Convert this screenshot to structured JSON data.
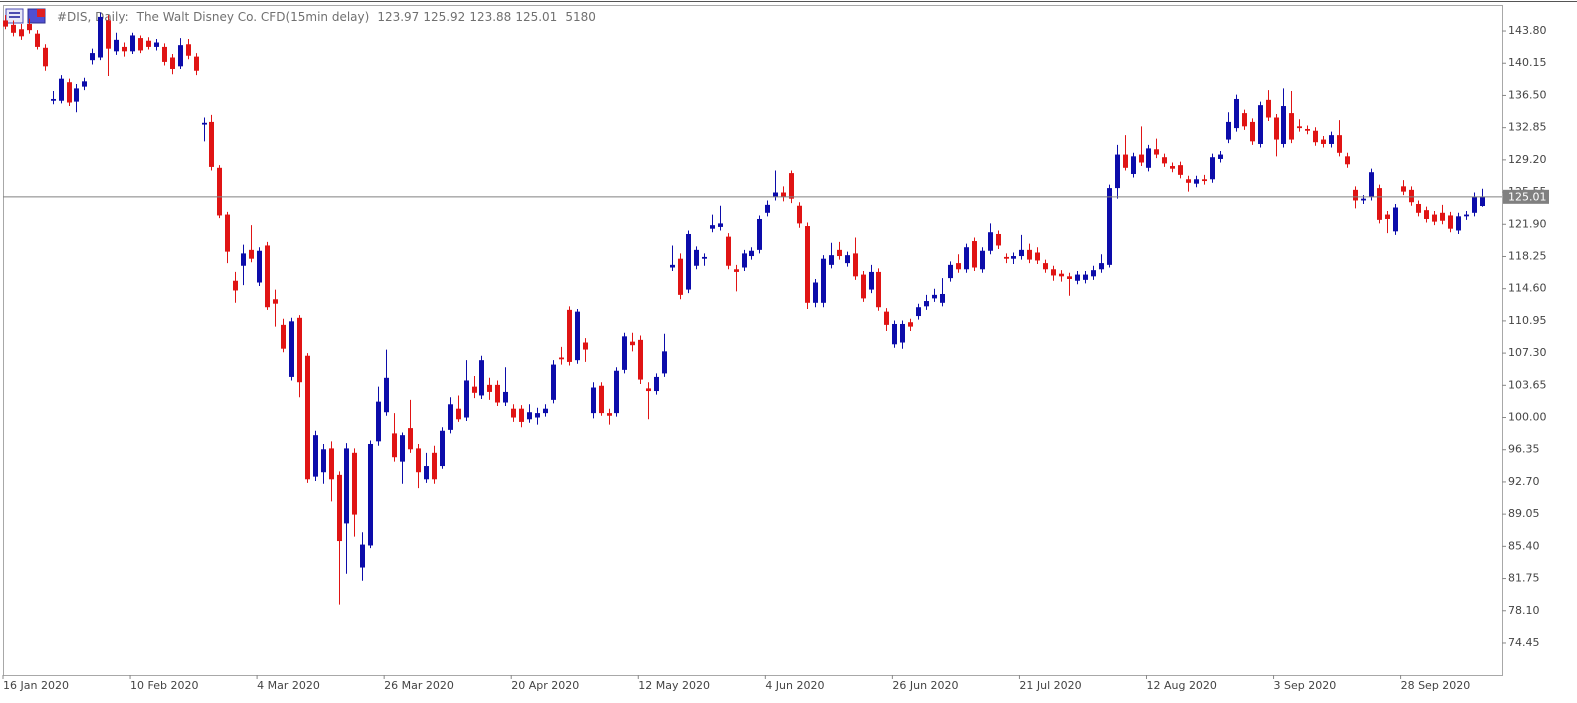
{
  "chart_data": {
    "type": "candlestick",
    "title": "#DIS, Daily:",
    "subtitle": "The Walt Disney Co. CFD(15min delay)",
    "volume": 5180,
    "up_color": "#0c0caa",
    "down_color": "#e01414",
    "categories": [
      "16 Jan 2020",
      null,
      null,
      null,
      null,
      null,
      null,
      null,
      null,
      null,
      null,
      null,
      null,
      null,
      null,
      null,
      "10 Feb 2020",
      null,
      null,
      null,
      null,
      null,
      null,
      null,
      null,
      null,
      null,
      null,
      null,
      null,
      null,
      null,
      "4 Mar 2020",
      null,
      null,
      null,
      null,
      null,
      null,
      null,
      null,
      null,
      null,
      null,
      null,
      null,
      null,
      null,
      "26 Mar 2020",
      null,
      null,
      null,
      null,
      null,
      null,
      null,
      null,
      null,
      null,
      null,
      null,
      null,
      null,
      null,
      "20 Apr 2020",
      null,
      null,
      null,
      null,
      null,
      null,
      null,
      null,
      null,
      null,
      null,
      null,
      null,
      null,
      null,
      "12 May 2020",
      null,
      null,
      null,
      null,
      null,
      null,
      null,
      null,
      null,
      null,
      null,
      null,
      null,
      null,
      null,
      "4 Jun 2020",
      null,
      null,
      null,
      null,
      null,
      null,
      null,
      null,
      null,
      null,
      null,
      null,
      null,
      null,
      null,
      "26 Jun 2020",
      null,
      null,
      null,
      null,
      null,
      null,
      null,
      null,
      null,
      null,
      null,
      null,
      null,
      null,
      null,
      "21 Jul 2020",
      null,
      null,
      null,
      null,
      null,
      null,
      null,
      null,
      null,
      null,
      null,
      null,
      null,
      null,
      null,
      "12 Aug 2020",
      null,
      null,
      null,
      null,
      null,
      null,
      null,
      null,
      null,
      null,
      null,
      null,
      null,
      null,
      null,
      "3 Sep 2020",
      null,
      null,
      null,
      null,
      null,
      null,
      null,
      null,
      null,
      null,
      null,
      null,
      null,
      null,
      null,
      "28 Sep 2020",
      null,
      null,
      null,
      null,
      null,
      null,
      null,
      null,
      null,
      null
    ],
    "open": [
      145.0,
      144.5,
      144.0,
      144.6,
      143.5,
      141.9,
      135.9,
      135.9,
      138.0,
      135.8,
      137.5,
      140.5,
      140.8,
      145.0,
      141.5,
      142.0,
      141.5,
      143.0,
      142.7,
      142.0,
      142.0,
      140.8,
      139.8,
      142.3,
      140.9,
      133.2,
      133.5,
      128.3,
      123.0,
      115.5,
      117.2,
      119.0,
      115.3,
      119.5,
      113.4,
      110.5,
      104.6,
      111.3,
      107.0,
      93.3,
      93.8,
      96.5,
      93.5,
      88.0,
      96.0,
      83.0,
      85.5,
      97.3,
      100.6,
      98.2,
      95.0,
      98.8,
      96.5,
      93.0,
      96.0,
      94.5,
      98.6,
      101.0,
      100.0,
      103.5,
      102.5,
      103.7,
      103.7,
      101.7,
      101.0,
      101.0,
      99.8,
      100.0,
      100.5,
      102.0,
      106.8,
      112.2,
      106.5,
      108.5,
      100.5,
      103.6,
      100.5,
      100.5,
      105.4,
      108.6,
      108.8,
      103.3,
      103.0,
      105.0,
      117.0,
      118.0,
      114.5,
      117.2,
      118.0,
      121.4,
      121.6,
      120.5,
      116.8,
      117.0,
      118.3,
      119.0,
      123.2,
      125.0,
      125.5,
      127.7,
      124.0,
      121.7,
      113.0,
      113.0,
      117.3,
      119.0,
      117.5,
      118.6,
      116.2,
      114.5,
      116.5,
      112.0,
      108.3,
      108.5,
      110.8,
      111.5,
      112.6,
      113.5,
      113.0,
      115.8,
      117.5,
      116.8,
      120.0,
      116.8,
      118.9,
      120.8,
      118.2,
      118.0,
      118.3,
      119.0,
      118.7,
      117.5,
      116.8,
      116.3,
      116.0,
      115.5,
      115.6,
      116.0,
      116.8,
      117.3,
      126.0,
      129.8,
      127.6,
      129.8,
      128.3,
      130.4,
      129.5,
      128.5,
      128.6,
      127.0,
      126.5,
      127.0,
      127.0,
      129.3,
      131.5,
      132.8,
      134.5,
      133.5,
      131.0,
      136.0,
      134.0,
      131.0,
      134.5,
      133.0,
      132.7,
      132.5,
      131.5,
      131.0,
      132.0,
      129.6,
      125.8,
      124.6,
      125.0,
      126.0,
      123.0,
      121.1,
      126.2,
      125.8,
      124.2,
      123.5,
      123.0,
      123.2,
      122.9,
      121.2,
      122.8,
      123.2,
      123.97
    ],
    "high": [
      145.6,
      145.0,
      144.6,
      145.2,
      143.9,
      142.3,
      137.0,
      138.8,
      138.4,
      137.8,
      138.5,
      141.8,
      145.9,
      145.6,
      143.6,
      142.5,
      143.6,
      143.3,
      143.1,
      142.9,
      142.4,
      141.2,
      143.0,
      142.9,
      141.3,
      134.0,
      134.3,
      128.6,
      123.3,
      116.5,
      119.6,
      121.8,
      119.3,
      119.9,
      114.5,
      111.2,
      111.3,
      111.6,
      107.3,
      98.5,
      97.0,
      97.3,
      93.9,
      97.1,
      96.5,
      87.0,
      97.4,
      103.5,
      107.7,
      100.5,
      98.3,
      102.0,
      97.0,
      96.0,
      96.8,
      98.9,
      102.3,
      102.5,
      106.5,
      104.7,
      107.0,
      104.5,
      104.2,
      105.7,
      101.5,
      101.4,
      101.5,
      101.1,
      101.5,
      106.5,
      108.0,
      112.6,
      112.3,
      109.0,
      104.0,
      104.0,
      101.0,
      105.7,
      109.6,
      109.6,
      109.3,
      104.0,
      105.0,
      109.5,
      119.5,
      118.6,
      121.2,
      119.4,
      118.6,
      123.0,
      124.0,
      120.9,
      117.3,
      119.0,
      119.3,
      122.9,
      124.6,
      128.0,
      126.2,
      128.0,
      124.4,
      122.1,
      115.7,
      118.4,
      119.8,
      119.9,
      118.8,
      120.4,
      116.6,
      117.3,
      116.9,
      112.4,
      111.0,
      111.0,
      111.2,
      112.9,
      113.9,
      114.6,
      115.8,
      117.7,
      118.5,
      119.7,
      120.4,
      119.3,
      122.0,
      121.2,
      118.6,
      118.7,
      120.7,
      119.7,
      119.3,
      117.9,
      117.2,
      116.7,
      116.4,
      116.6,
      116.6,
      117.2,
      118.5,
      126.4,
      130.9,
      132.0,
      130.0,
      133.0,
      130.9,
      131.6,
      129.9,
      128.9,
      129.0,
      127.4,
      127.4,
      127.5,
      129.9,
      130.2,
      134.6,
      136.6,
      134.9,
      133.9,
      135.8,
      137.1,
      134.4,
      137.3,
      137.0,
      133.8,
      133.1,
      132.9,
      131.9,
      132.4,
      133.7,
      130.0,
      126.2,
      125.2,
      128.2,
      126.4,
      123.4,
      124.2,
      126.9,
      126.2,
      124.6,
      123.9,
      123.4,
      124.1,
      123.3,
      123.2,
      123.4,
      125.5,
      125.92
    ],
    "low": [
      144.0,
      143.2,
      142.8,
      143.5,
      141.7,
      139.3,
      135.5,
      135.6,
      135.3,
      134.6,
      137.1,
      140.0,
      140.5,
      138.7,
      141.1,
      140.9,
      141.2,
      141.3,
      141.7,
      141.6,
      139.9,
      138.9,
      139.5,
      140.6,
      138.8,
      131.3,
      128.0,
      122.6,
      117.5,
      113.0,
      115.0,
      117.6,
      114.9,
      112.2,
      110.3,
      107.4,
      104.2,
      102.3,
      92.6,
      92.8,
      92.5,
      90.5,
      78.8,
      82.3,
      86.5,
      81.5,
      85.2,
      96.8,
      100.2,
      95.0,
      92.5,
      96.0,
      92.0,
      92.6,
      92.5,
      94.2,
      98.2,
      99.5,
      99.6,
      102.2,
      102.1,
      102.0,
      101.3,
      101.3,
      99.5,
      98.9,
      99.4,
      99.2,
      100.1,
      101.6,
      106.0,
      105.9,
      106.1,
      106.3,
      99.9,
      100.2,
      99.2,
      100.1,
      105.0,
      107.5,
      103.8,
      99.8,
      102.6,
      104.6,
      116.6,
      113.4,
      114.1,
      116.8,
      117.2,
      121.0,
      121.2,
      116.8,
      114.3,
      116.6,
      117.9,
      118.6,
      122.8,
      124.6,
      124.5,
      124.3,
      121.5,
      112.3,
      112.5,
      112.5,
      116.9,
      117.9,
      117.1,
      115.6,
      113.1,
      114.1,
      112.1,
      109.8,
      107.9,
      107.8,
      109.8,
      111.1,
      112.2,
      113.1,
      112.6,
      115.4,
      116.4,
      116.4,
      116.6,
      116.4,
      118.5,
      119.1,
      117.5,
      117.4,
      117.9,
      117.5,
      117.4,
      116.4,
      115.5,
      115.4,
      113.8,
      115.1,
      115.2,
      115.6,
      116.4,
      117.0,
      124.8,
      128.0,
      127.2,
      128.5,
      127.9,
      129.4,
      128.4,
      127.8,
      127.1,
      125.6,
      126.1,
      126.4,
      126.6,
      128.9,
      131.1,
      132.4,
      132.6,
      130.9,
      130.6,
      133.6,
      129.6,
      130.6,
      131.1,
      132.4,
      132.1,
      130.8,
      130.6,
      130.6,
      129.6,
      128.3,
      123.7,
      124.2,
      124.6,
      122.0,
      120.9,
      120.7,
      125.2,
      124.0,
      122.8,
      122.1,
      121.8,
      121.9,
      121.0,
      120.8,
      122.4,
      122.8,
      123.88
    ],
    "close": [
      144.3,
      143.6,
      143.2,
      143.9,
      142.0,
      139.8,
      136.1,
      138.4,
      135.7,
      137.3,
      138.1,
      141.3,
      145.4,
      141.8,
      142.8,
      141.5,
      143.3,
      141.6,
      142.0,
      142.5,
      140.3,
      139.5,
      142.2,
      141.0,
      139.3,
      133.4,
      128.4,
      122.9,
      118.8,
      114.4,
      118.6,
      118.0,
      118.9,
      112.5,
      112.9,
      107.8,
      110.9,
      104.0,
      93.0,
      98.0,
      96.4,
      93.0,
      86.0,
      96.5,
      89.0,
      85.6,
      97.0,
      101.8,
      104.5,
      95.5,
      98.0,
      96.4,
      93.8,
      94.5,
      93.0,
      98.5,
      101.5,
      99.8,
      104.2,
      102.8,
      106.5,
      102.9,
      101.7,
      102.9,
      100.0,
      99.5,
      100.6,
      100.5,
      101.0,
      106.0,
      106.6,
      106.3,
      112.0,
      107.7,
      103.4,
      100.5,
      100.2,
      105.3,
      109.2,
      108.2,
      104.3,
      103.0,
      104.6,
      107.5,
      117.3,
      113.9,
      120.8,
      119.0,
      118.2,
      121.8,
      122.0,
      117.2,
      116.5,
      118.6,
      118.9,
      122.5,
      124.1,
      125.5,
      125.0,
      124.8,
      122.0,
      113.0,
      115.3,
      118.0,
      118.4,
      118.3,
      118.4,
      116.0,
      113.5,
      116.5,
      112.5,
      110.5,
      110.6,
      110.6,
      110.3,
      112.5,
      113.2,
      113.9,
      114.0,
      117.3,
      116.8,
      119.3,
      117.0,
      118.9,
      121.0,
      119.5,
      118.0,
      118.3,
      119.0,
      117.9,
      117.8,
      116.8,
      116.1,
      116.0,
      115.7,
      116.2,
      116.2,
      116.7,
      117.5,
      126.0,
      129.8,
      128.3,
      129.6,
      128.9,
      130.5,
      129.8,
      128.8,
      128.2,
      127.5,
      126.6,
      127.0,
      126.8,
      129.5,
      129.8,
      133.5,
      136.1,
      133.0,
      131.3,
      135.4,
      134.0,
      131.5,
      135.3,
      131.5,
      132.8,
      132.5,
      131.2,
      131.0,
      132.0,
      130.0,
      128.7,
      124.6,
      124.8,
      127.8,
      122.4,
      122.5,
      123.8,
      125.6,
      124.4,
      123.2,
      122.5,
      122.2,
      122.3,
      121.4,
      122.8,
      123.0,
      125.0,
      125.01
    ],
    "ylim": [
      70.82,
      146.75
    ],
    "yticks": [
      {
        "value": 143.8,
        "label": "143.80"
      },
      140.15,
      {
        "value": 136.5,
        "label": "136.50"
      },
      132.85,
      {
        "value": 129.2,
        "label": "129.20"
      },
      125.55,
      {
        "value": 121.9,
        "label": "121.90"
      },
      118.25,
      {
        "value": 114.6,
        "label": "114.60"
      },
      110.95,
      {
        "value": 107.3,
        "label": "107.30"
      },
      103.65,
      {
        "value": 100,
        "label": "100.00"
      },
      96.35,
      {
        "value": 92.7,
        "label": "92.70"
      },
      89.05,
      {
        "value": 85.4,
        "label": "85.40"
      },
      81.75,
      {
        "value": 78.1,
        "label": "78.10"
      },
      74.45
    ],
    "grid": false
  }
}
